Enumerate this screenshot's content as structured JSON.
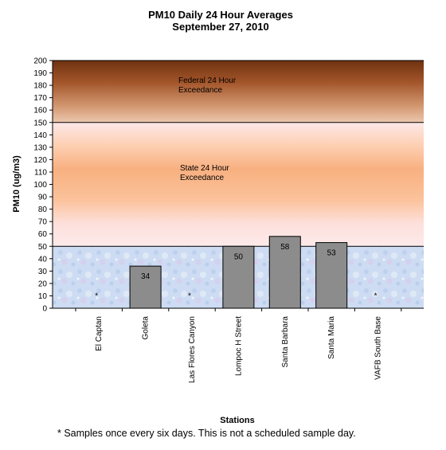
{
  "chart_data": {
    "type": "bar",
    "title": "PM10 Daily 24 Hour Averages",
    "subtitle": "September 27, 2010",
    "xlabel": "Stations",
    "ylabel": "PM10 (ug/m3)",
    "ylim": [
      0,
      200
    ],
    "ytick_step": 10,
    "categories": [
      "El Captan",
      "Goleta",
      "Las Flores Canyon",
      "Lompoc H Street",
      "Santa Barbara",
      "Santa Maria",
      "VAFB South Base"
    ],
    "values": [
      null,
      34,
      null,
      50,
      58,
      53,
      null
    ],
    "data_labels": [
      "*",
      "34",
      "*",
      "50",
      "58",
      "53",
      "*"
    ],
    "zones": [
      {
        "label_line1": "Federal 24 Hour",
        "label_line2": "Exceedance",
        "from": 150,
        "to": 200
      },
      {
        "label_line1": "State 24 Hour",
        "label_line2": "Exceedance",
        "from": 50,
        "to": 150
      }
    ],
    "reference_lines": [
      50,
      150
    ],
    "colors": {
      "bar": "#8c8c8c",
      "bar_stroke": "#000000",
      "federal_top": "#7a3a12",
      "federal_bottom": "#e8bfa0",
      "state_peach": "#f8b080",
      "state_pink": "#fde6e6",
      "clean_zone": "#c9d9f1"
    }
  },
  "footnote": "*  Samples once every six days.  This is not a scheduled sample day."
}
